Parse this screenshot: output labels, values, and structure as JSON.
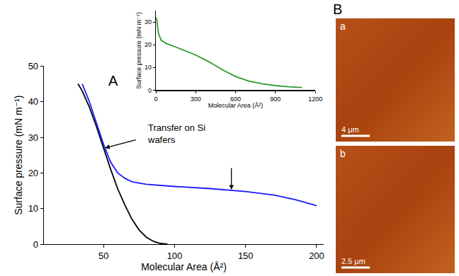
{
  "chart_data": [
    {
      "type": "line",
      "panel_label": "A",
      "x_label": "Molecular Area (Å²)",
      "y_label": "Surface pressure (mN m⁻¹)",
      "xlim": [
        8,
        205
      ],
      "xticks": [
        50,
        100,
        150,
        200
      ],
      "ylim": [
        0,
        50
      ],
      "yticks": [
        0,
        10,
        20,
        30,
        40,
        50
      ],
      "grid": false,
      "series": [
        {
          "color": "#000000",
          "x": [
            32,
            35,
            40,
            45,
            50,
            55,
            60,
            65,
            70,
            75,
            80,
            85,
            90,
            95
          ],
          "values": [
            45,
            43,
            38.5,
            33,
            27,
            21,
            15.5,
            11,
            7,
            4,
            2,
            0.8,
            0.2,
            0
          ]
        },
        {
          "color": "#1a1aff",
          "x": [
            35,
            40,
            45,
            50,
            55,
            60,
            65,
            70,
            80,
            100,
            125,
            150,
            170,
            185,
            200
          ],
          "values": [
            45,
            40,
            34,
            28,
            23,
            20,
            18.5,
            17.5,
            16.8,
            16.2,
            15.6,
            14.8,
            13.8,
            12.5,
            10.8
          ]
        }
      ],
      "annotations": [
        {
          "text": "Transfer on Si wafers",
          "x": 80,
          "y": 31,
          "points_to": [
            [
              51,
              27
            ],
            [
              140,
              15.3
            ]
          ]
        }
      ]
    },
    {
      "type": "line",
      "x_label": "Molecular Area (Å²)",
      "y_label": "Surface pressure (mN m⁻¹)",
      "xlim": [
        0,
        1200
      ],
      "xticks": [
        0,
        300,
        600,
        900,
        1200
      ],
      "ylim": [
        0,
        35
      ],
      "yticks": [
        0,
        10,
        20,
        30
      ],
      "grid": false,
      "series": [
        {
          "color": "#2e9a2e",
          "x": [
            5,
            10,
            20,
            40,
            80,
            150,
            300,
            400,
            500,
            600,
            700,
            800,
            900,
            1000,
            1100
          ],
          "values": [
            32,
            29,
            25,
            22,
            20.5,
            19,
            15.5,
            12.5,
            9,
            6,
            4,
            2.8,
            2,
            1.5,
            1.2
          ]
        }
      ]
    }
  ],
  "panel_b": {
    "label": "B",
    "images": [
      {
        "label": "a",
        "scale_bar": "4 μm"
      },
      {
        "label": "b",
        "scale_bar": "2.5 μm"
      }
    ]
  }
}
